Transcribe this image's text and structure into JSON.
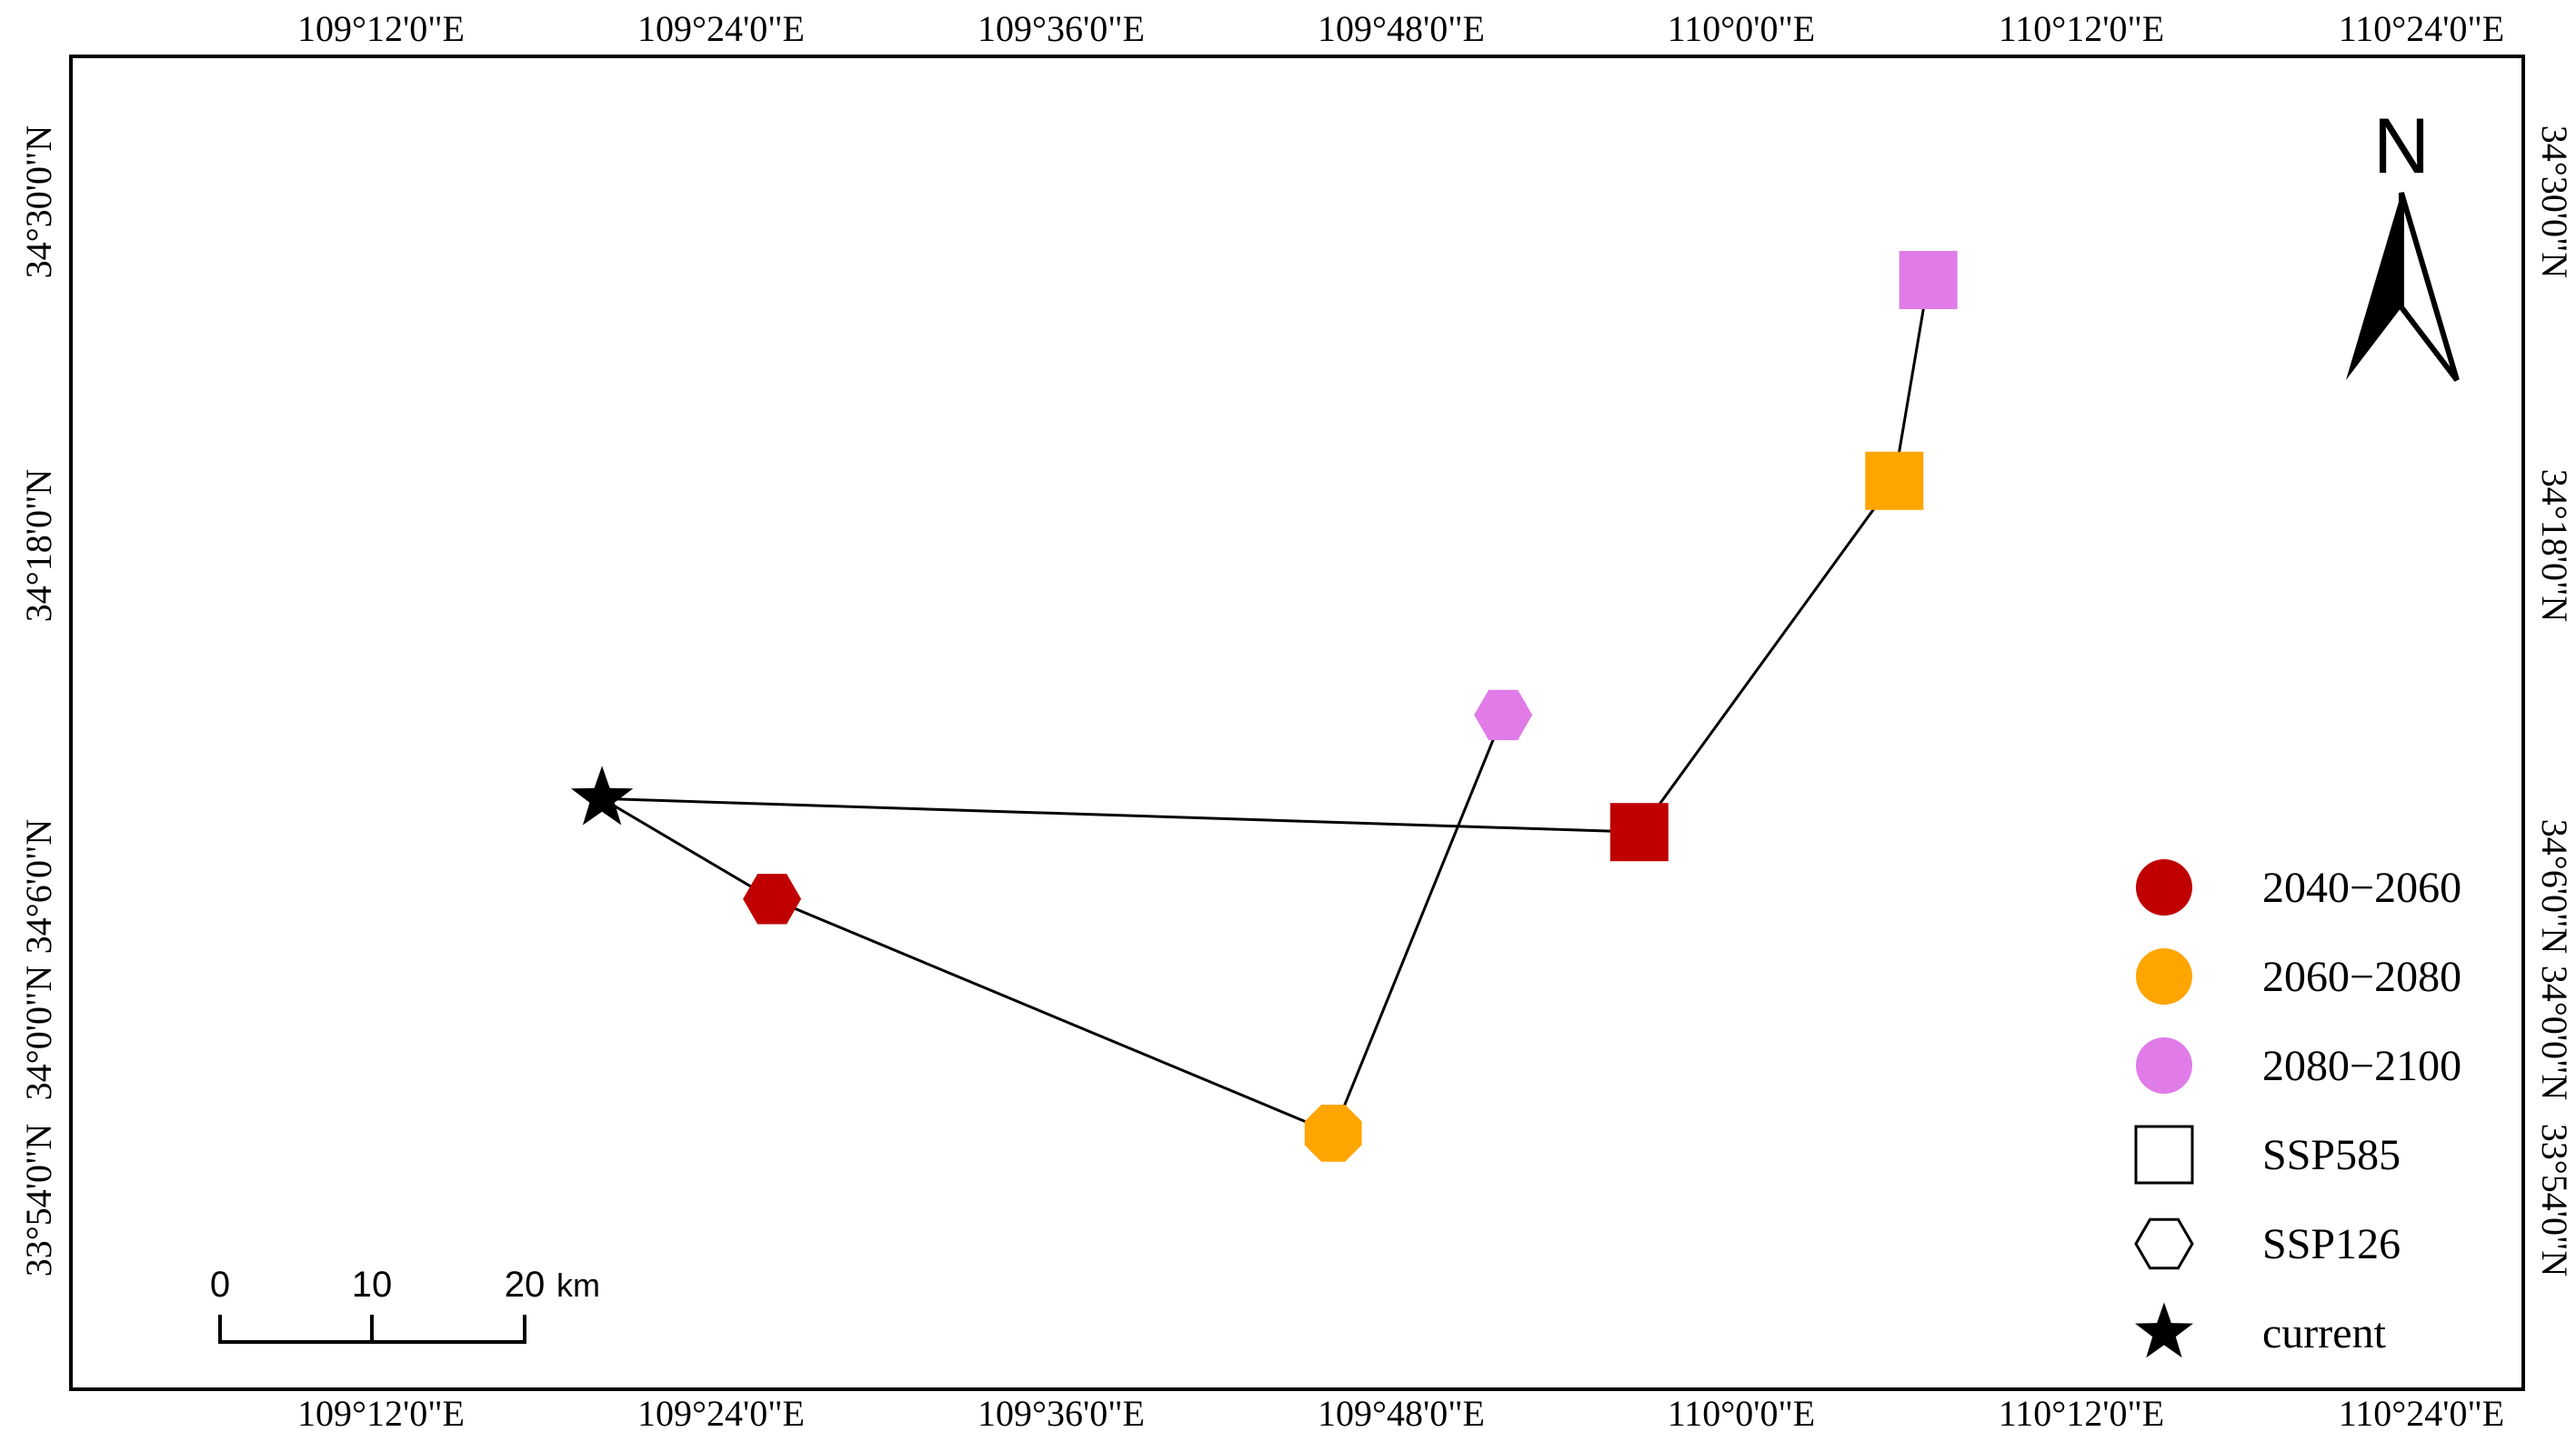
{
  "map": {
    "lon_ticks": [
      "109°12'0\"E",
      "109°24'0\"E",
      "109°36'0\"E",
      "109°48'0\"E",
      "110°0'0\"E",
      "110°12'0\"E",
      "110°24'0\"E"
    ],
    "lat_ticks": [
      "33°54'0\"N",
      "34°0'0\"N",
      "34°6'0\"N",
      "34°18'0\"N",
      "34°30'0\"N"
    ],
    "north_label": "N",
    "scale_bar": {
      "labels": [
        "0",
        "10",
        "20"
      ],
      "unit": "km"
    },
    "legend": [
      {
        "label": "2040−2060",
        "symbol": "circle",
        "color": "#c00000"
      },
      {
        "label": "2060−2080",
        "symbol": "circle",
        "color": "#ffa500"
      },
      {
        "label": "2080−2100",
        "symbol": "circle",
        "color": "#e07be8"
      },
      {
        "label": "SSP585",
        "symbol": "square-outline",
        "color": "#000000"
      },
      {
        "label": "SSP126",
        "symbol": "hexagon-outline",
        "color": "#000000"
      },
      {
        "label": "current",
        "symbol": "star",
        "color": "#000000"
      }
    ],
    "points": [
      {
        "name": "current",
        "symbol": "star",
        "color": "#000000",
        "lon": 109.33,
        "lat": 34.14
      },
      {
        "name": "SSP126 2040-2060",
        "symbol": "hexagon",
        "color": "#c00000",
        "lon": 109.43,
        "lat": 34.08
      },
      {
        "name": "SSP126 2060-2080",
        "symbol": "octagon",
        "color": "#ffa500",
        "lon": 109.76,
        "lat": 33.94
      },
      {
        "name": "SSP126 2080-2100",
        "symbol": "hexagon",
        "color": "#e07be8",
        "lon": 109.86,
        "lat": 34.19
      },
      {
        "name": "SSP585 2040-2060",
        "symbol": "square",
        "color": "#c00000",
        "lon": 109.94,
        "lat": 34.12
      },
      {
        "name": "SSP585 2060-2080",
        "symbol": "square",
        "color": "#ffa500",
        "lon": 110.09,
        "lat": 34.33
      },
      {
        "name": "SSP585 2080-2100",
        "symbol": "square",
        "color": "#e07be8",
        "lon": 110.11,
        "lat": 34.45
      }
    ],
    "paths": [
      [
        "current",
        "SSP126 2040-2060",
        "SSP126 2060-2080",
        "SSP126 2080-2100"
      ],
      [
        "current",
        "SSP585 2040-2060",
        "SSP585 2060-2080",
        "SSP585 2080-2100"
      ]
    ]
  }
}
